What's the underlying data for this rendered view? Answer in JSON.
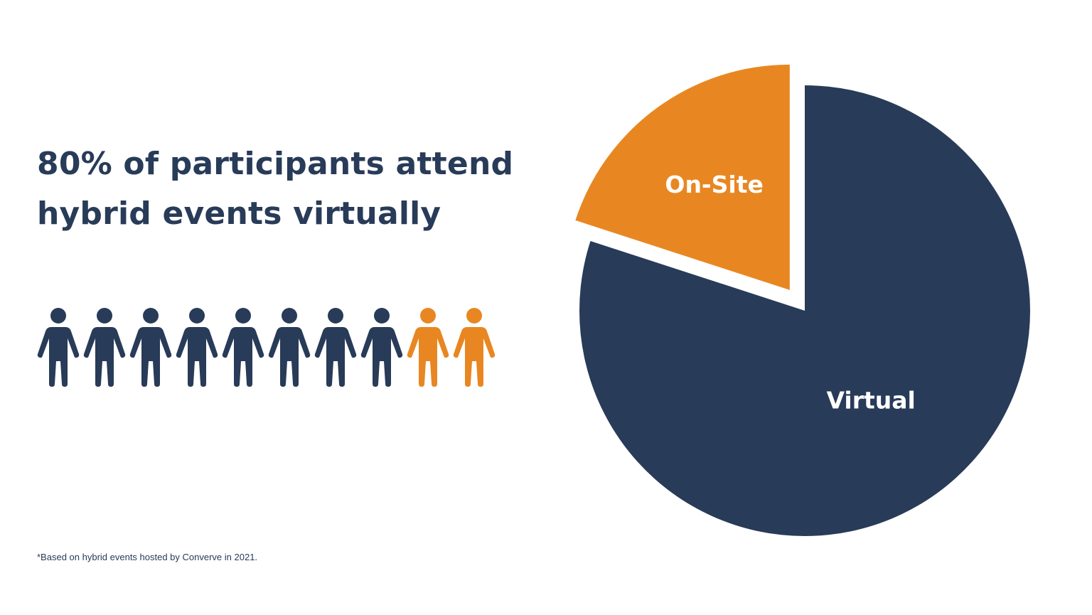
{
  "headline": {
    "line1": "80% of participants attend",
    "line2": "hybrid events virtually"
  },
  "footnote": "*Based on hybrid events hosted by Converve in 2021.",
  "pictogram": {
    "total": 10,
    "virtual_count": 8,
    "onsite_count": 2,
    "icon": "person-icon"
  },
  "colors": {
    "navy": "#283b58",
    "orange": "#e88722",
    "background": "#ffffff"
  },
  "chart_data": {
    "type": "pie",
    "title": "",
    "slices": [
      {
        "label": "Virtual",
        "value": 80,
        "color": "#283b58",
        "exploded": false
      },
      {
        "label": "On-Site",
        "value": 20,
        "color": "#e88722",
        "exploded": true
      }
    ],
    "start": "top",
    "direction": "clockwise",
    "legend": "none"
  }
}
